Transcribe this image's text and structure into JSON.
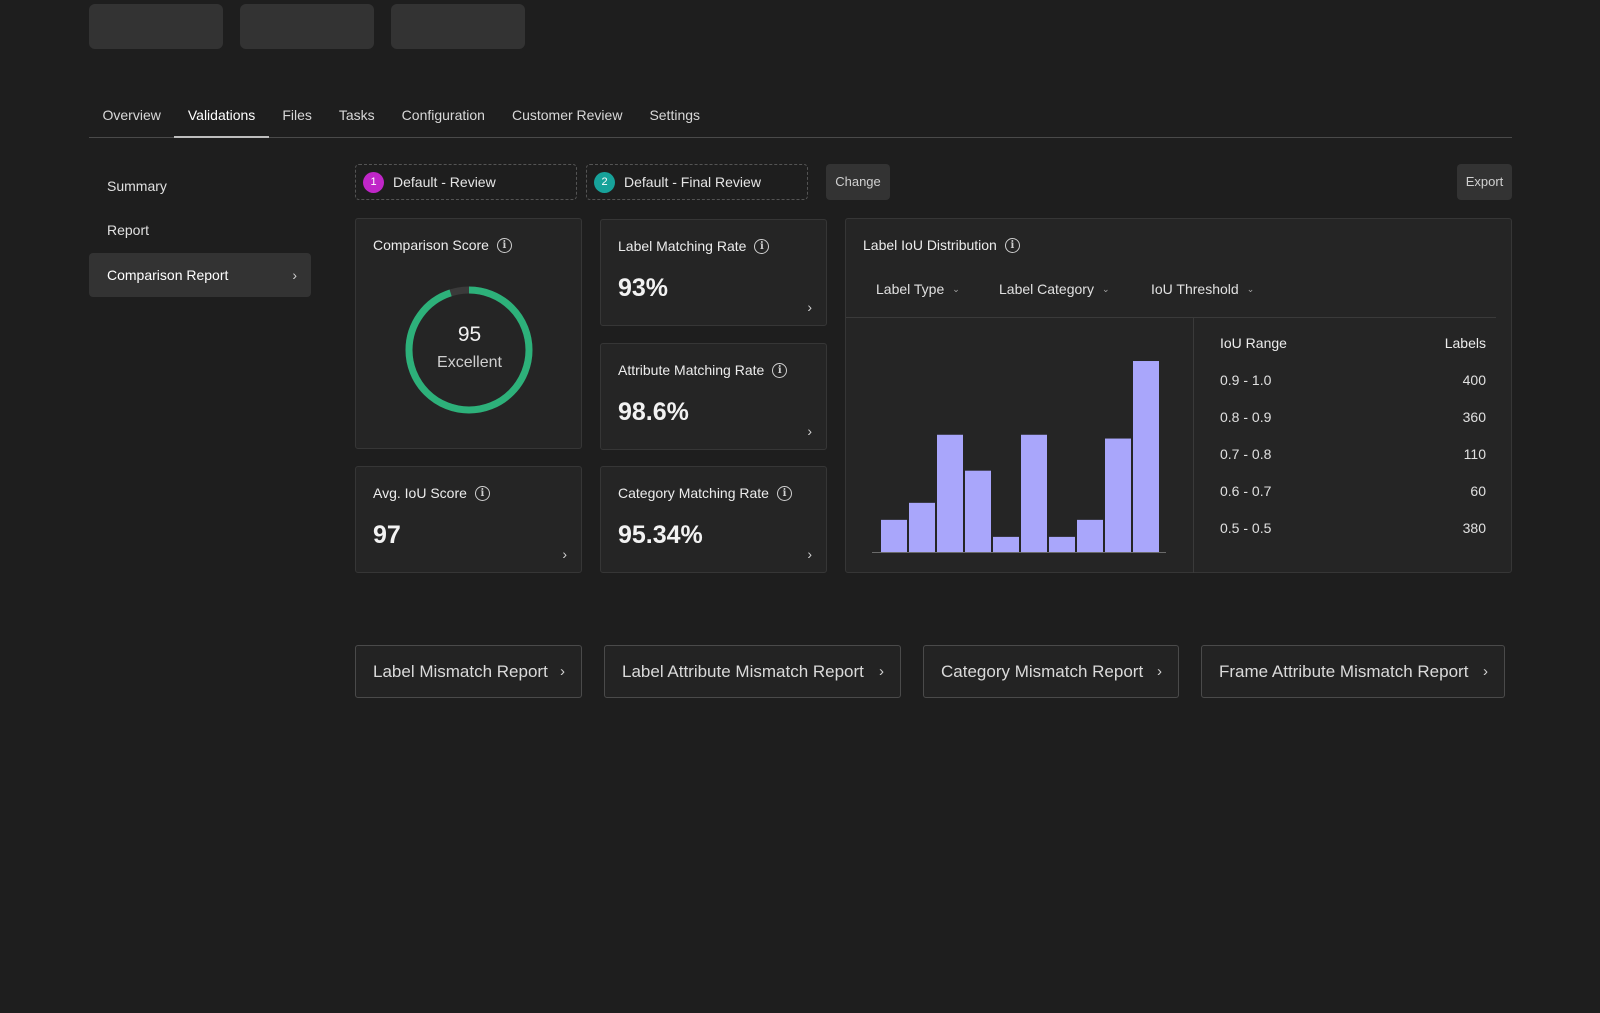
{
  "tabs": [
    {
      "label": "Overview"
    },
    {
      "label": "Validations",
      "active": true
    },
    {
      "label": "Files"
    },
    {
      "label": "Tasks"
    },
    {
      "label": "Configuration"
    },
    {
      "label": "Customer Review"
    },
    {
      "label": "Settings"
    }
  ],
  "sidebar": {
    "items": [
      {
        "label": "Summary"
      },
      {
        "label": "Report"
      },
      {
        "label": "Comparison Report",
        "active": true
      }
    ]
  },
  "selectors": {
    "first": {
      "number": "1",
      "label": "Default - Review",
      "color": "#c026c8"
    },
    "second": {
      "number": "2",
      "label": "Default - Final Review",
      "color": "#17a29a"
    },
    "change_label": "Change",
    "export_label": "Export"
  },
  "comparison_score": {
    "title": "Comparison Score",
    "score": "95",
    "grade": "Excellent",
    "fraction": 0.95,
    "ring_color": "#2db17a",
    "track_color": "#3a3a3a"
  },
  "metrics": {
    "label_matching": {
      "title": "Label Matching Rate",
      "value": "93%"
    },
    "attribute_matching": {
      "title": "Attribute Matching Rate",
      "value": "98.6%"
    },
    "avg_iou": {
      "title": "Avg. IoU Score",
      "value": "97"
    },
    "category_matching": {
      "title": "Category Matching Rate",
      "value": "95.34%"
    }
  },
  "iou_distribution": {
    "title": "Label IoU Distribution",
    "filters": [
      {
        "label": "Label Type"
      },
      {
        "label": "Label Category"
      },
      {
        "label": "IoU Threshold"
      }
    ],
    "table": {
      "headers": {
        "range": "IoU Range",
        "labels": "Labels"
      },
      "rows": [
        {
          "range": "0.9 - 1.0",
          "labels": "400"
        },
        {
          "range": "0.8 - 0.9",
          "labels": "360"
        },
        {
          "range": "0.7 - 0.8",
          "labels": "110"
        },
        {
          "range": "0.6 - 0.7",
          "labels": "60"
        },
        {
          "range": "0.5 - 0.5",
          "labels": "380"
        }
      ]
    }
  },
  "chart_data": {
    "type": "bar",
    "values": [
      17,
      26,
      62,
      43,
      8,
      62,
      8,
      17,
      60,
      101
    ],
    "ylim": [
      0,
      110
    ],
    "bar_color": "#a9a6fb",
    "axis_color": "#6a6a6a",
    "grid": false
  },
  "reports": [
    {
      "label": "Label Mismatch Report"
    },
    {
      "label": "Label Attribute Mismatch Report"
    },
    {
      "label": "Category Mismatch Report"
    },
    {
      "label": "Frame Attribute Mismatch Report"
    }
  ],
  "icons": {
    "chevron": "›",
    "caret": "⌄",
    "info": "i"
  }
}
